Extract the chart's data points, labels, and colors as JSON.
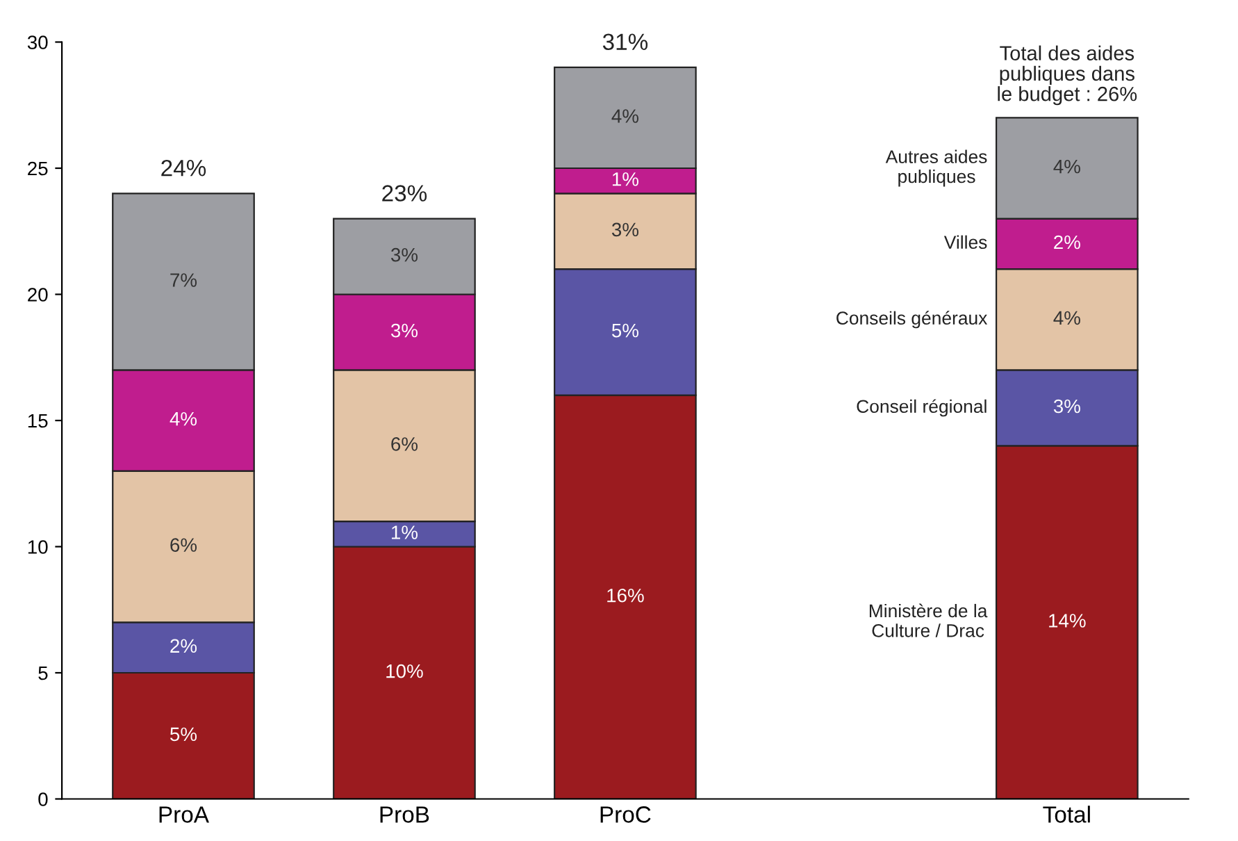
{
  "chart_data": {
    "type": "bar",
    "stacked": true,
    "categories": [
      "ProA",
      "ProB",
      "ProC",
      null,
      "Total"
    ],
    "series": [
      {
        "name": "Ministère de la\nCulture / Drac",
        "color": "#9b1b1f",
        "values": [
          5,
          10,
          16,
          null,
          14
        ],
        "value_labels": [
          "5%",
          "10%",
          "16%",
          null,
          "14%"
        ]
      },
      {
        "name": "Conseil régional",
        "color": "#5a55a5",
        "values": [
          2,
          1,
          5,
          null,
          3
        ],
        "value_labels": [
          "2%",
          "1%",
          "5%",
          null,
          "3%"
        ]
      },
      {
        "name": "Conseils généraux",
        "color": "#e3c4a6",
        "values": [
          6,
          6,
          3,
          null,
          4
        ],
        "value_labels": [
          "6%",
          "6%",
          "3%",
          null,
          "4%"
        ]
      },
      {
        "name": "Villes",
        "color": "#c01d8e",
        "values": [
          4,
          3,
          1,
          null,
          2
        ],
        "value_labels": [
          "4%",
          "3%",
          "1%",
          null,
          "2%"
        ]
      },
      {
        "name": "Autres aides\npubliques",
        "color": "#9d9ea3",
        "values": [
          7,
          3,
          4,
          null,
          4
        ],
        "value_labels": [
          "7%",
          "3%",
          "4%",
          null,
          "4%"
        ]
      }
    ],
    "totals": [
      "24%",
      "23%",
      "31%",
      null,
      "Total des aides\npubliques dans\nle budget : 26%"
    ],
    "ylim": [
      0,
      30
    ],
    "yticks": [
      0,
      5,
      10,
      15,
      20,
      25,
      30
    ],
    "grid": false,
    "legend": false
  }
}
